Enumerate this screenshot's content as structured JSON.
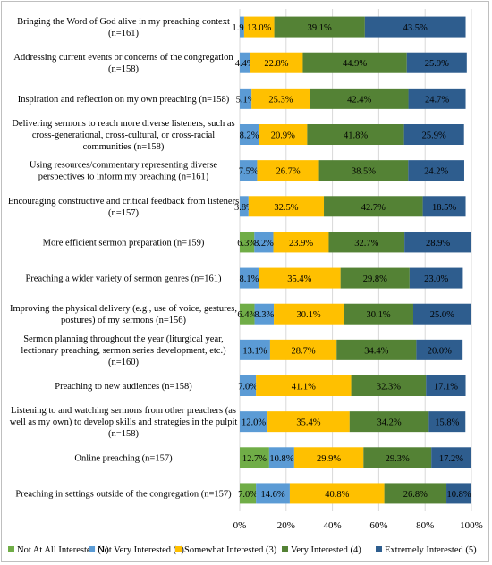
{
  "chart_data": {
    "type": "bar",
    "orientation": "horizontal-stacked-100",
    "categories": [
      [
        "Bringing the Word of God alive in my preaching context",
        "(n=161)"
      ],
      [
        "Addressing current events or concerns of the congregation",
        "(n=158)"
      ],
      [
        "Inspiration and reflection on my own preaching (n=158)"
      ],
      [
        "Delivering sermons to reach more diverse listeners, such as",
        "cross-generational, cross-cultural, or cross-racial",
        "communities (n=158)"
      ],
      [
        "Using resources/commentary representing diverse",
        "perspectives to inform my preaching (n=161)"
      ],
      [
        "Encouraging constructive and critical feedback from listeners",
        "(n=157)"
      ],
      [
        "More efficient sermon preparation (n=159)"
      ],
      [
        "Preaching a wider variety of sermon genres (n=161)"
      ],
      [
        "Improving the physical delivery (e.g., use of voice, gestures,",
        "postures) of my sermons (n=156)"
      ],
      [
        "Sermon planning throughout the year (liturgical year,",
        "lectionary preaching, sermon series development, etc.)",
        "(n=160)"
      ],
      [
        "Preaching to new audiences (n=158)"
      ],
      [
        "Listening to and watching sermons from other preachers (as",
        "well as my own) to develop skills and strategies in the pulpit",
        "(n=158)"
      ],
      [
        "Online preaching (n=157)"
      ],
      [
        "Preaching in settings outside of the congregation (n=157)"
      ]
    ],
    "series": [
      {
        "name": "Not At All Interested (1)",
        "color": "#70ad47",
        "values": [
          null,
          null,
          null,
          null,
          null,
          null,
          6.3,
          null,
          6.4,
          null,
          null,
          null,
          12.7,
          7.0
        ],
        "labels": [
          "",
          "",
          "",
          "",
          "",
          "",
          "6.3%",
          "",
          "6.4%",
          "",
          "",
          "",
          "12.7%",
          "7.0%"
        ]
      },
      {
        "name": "Not Very Interested (2)",
        "color": "#5b9bd5",
        "values": [
          1.9,
          4.4,
          5.1,
          8.2,
          7.5,
          3.8,
          8.2,
          8.1,
          8.3,
          13.1,
          7.0,
          12.0,
          10.8,
          14.6
        ],
        "labels": [
          "1.9%",
          "4.4%",
          "5.1%",
          "8.2%",
          "7.5%",
          "3.8%",
          "8.2%",
          "8.1%",
          "8.3%",
          "13.1%",
          "7.0%",
          "12.0%",
          "10.8%",
          "14.6%"
        ]
      },
      {
        "name": "Somewhat Interested (3)",
        "color": "#ffc000",
        "values": [
          13.0,
          22.8,
          25.3,
          20.9,
          26.7,
          32.5,
          23.9,
          35.4,
          30.1,
          28.7,
          41.1,
          35.4,
          29.9,
          40.8
        ],
        "labels": [
          "13.0%",
          "22.8%",
          "25.3%",
          "20.9%",
          "26.7%",
          "32.5%",
          "23.9%",
          "35.4%",
          "30.1%",
          "28.7%",
          "41.1%",
          "35.4%",
          "29.9%",
          "40.8%"
        ]
      },
      {
        "name": "Very Interested (4)",
        "color": "#548235",
        "values": [
          39.1,
          44.9,
          42.4,
          41.8,
          38.5,
          42.7,
          32.7,
          29.8,
          30.1,
          34.4,
          32.3,
          34.2,
          29.3,
          26.8
        ],
        "labels": [
          "39.1%",
          "44.9%",
          "42.4%",
          "41.8%",
          "38.5%",
          "42.7%",
          "32.7%",
          "29.8%",
          "30.1%",
          "34.4%",
          "32.3%",
          "34.2%",
          "29.3%",
          "26.8%"
        ]
      },
      {
        "name": "Extremely Interested (5)",
        "color": "#2e5d8e",
        "values": [
          43.5,
          25.9,
          24.7,
          25.9,
          24.2,
          18.5,
          28.9,
          23.0,
          25.0,
          20.0,
          17.1,
          15.8,
          17.2,
          10.8
        ],
        "labels": [
          "43.5%",
          "25.9%",
          "24.7%",
          "25.9%",
          "24.2%",
          "18.5%",
          "28.9%",
          "23.0%",
          "25.0%",
          "20.0%",
          "17.1%",
          "15.8%",
          "17.2%",
          "10.8%"
        ]
      }
    ],
    "xlim": [
      0,
      100
    ],
    "xticks": [
      "0%",
      "20%",
      "40%",
      "60%",
      "80%",
      "100%"
    ],
    "grid": "vertical",
    "legend": "bottom"
  }
}
